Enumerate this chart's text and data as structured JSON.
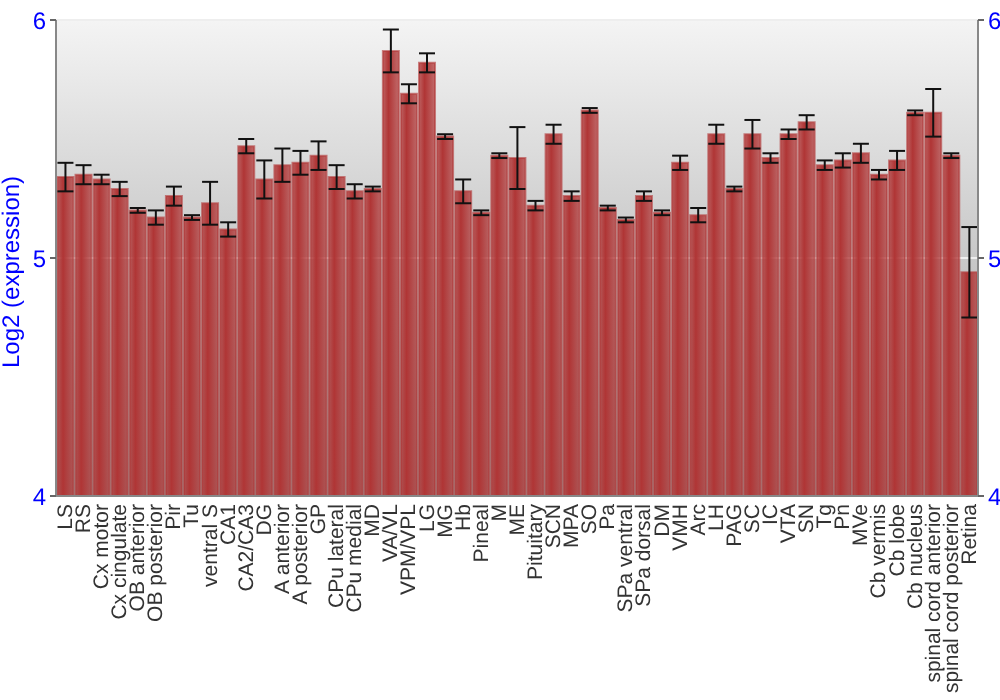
{
  "chart_data": {
    "type": "bar",
    "ylabel": "Log2 (expression)",
    "categories": [
      "LS",
      "RS",
      "Cx motor",
      "Cx cingulate",
      "OB anterior",
      "OB posterior",
      "Pir",
      "Tu",
      "ventral S",
      "CA1",
      "CA2/CA3",
      "DG",
      "A anterior",
      "A posterior",
      "GP",
      "CPu lateral",
      "CPu medial",
      "MD",
      "VA/VL",
      "VPM/VPL",
      "LG",
      "MG",
      "Hb",
      "Pineal",
      "M",
      "ME",
      "Pituitary",
      "SCN",
      "MPA",
      "SO",
      "Pa",
      "SPa ventral",
      "SPa dorsal",
      "DM",
      "VMH",
      "Arc",
      "LH",
      "PAG",
      "SC",
      "IC",
      "VTA",
      "SN",
      "Tg",
      "Pn",
      "MVe",
      "Cb vermis",
      "Cb lobe",
      "Cb nucleus",
      "spinal cord anterior",
      "spinal cord posterior",
      "Retina"
    ],
    "values": [
      5.34,
      5.35,
      5.33,
      5.29,
      5.2,
      5.17,
      5.26,
      5.17,
      5.23,
      5.12,
      5.47,
      5.33,
      5.39,
      5.4,
      5.43,
      5.34,
      5.28,
      5.29,
      5.87,
      5.69,
      5.82,
      5.51,
      5.28,
      5.19,
      5.43,
      5.42,
      5.22,
      5.52,
      5.26,
      5.62,
      5.21,
      5.16,
      5.26,
      5.19,
      5.4,
      5.18,
      5.52,
      5.29,
      5.52,
      5.42,
      5.52,
      5.57,
      5.39,
      5.41,
      5.44,
      5.35,
      5.41,
      5.61,
      5.61,
      5.43,
      4.94
    ],
    "errors": [
      0.06,
      0.04,
      0.02,
      0.03,
      0.01,
      0.03,
      0.04,
      0.01,
      0.09,
      0.03,
      0.03,
      0.08,
      0.07,
      0.05,
      0.06,
      0.05,
      0.03,
      0.01,
      0.09,
      0.04,
      0.04,
      0.01,
      0.05,
      0.01,
      0.01,
      0.13,
      0.02,
      0.04,
      0.02,
      0.01,
      0.01,
      0.01,
      0.02,
      0.01,
      0.03,
      0.03,
      0.04,
      0.01,
      0.06,
      0.02,
      0.02,
      0.03,
      0.02,
      0.03,
      0.04,
      0.02,
      0.04,
      0.01,
      0.1,
      0.01,
      0.19
    ],
    "color": "#b03535",
    "ylim": [
      4,
      6
    ],
    "yticks": [
      4,
      5,
      6
    ],
    "y2lim": [
      4,
      6
    ],
    "y2ticks": [
      4,
      5,
      6
    ],
    "grid": "y"
  }
}
